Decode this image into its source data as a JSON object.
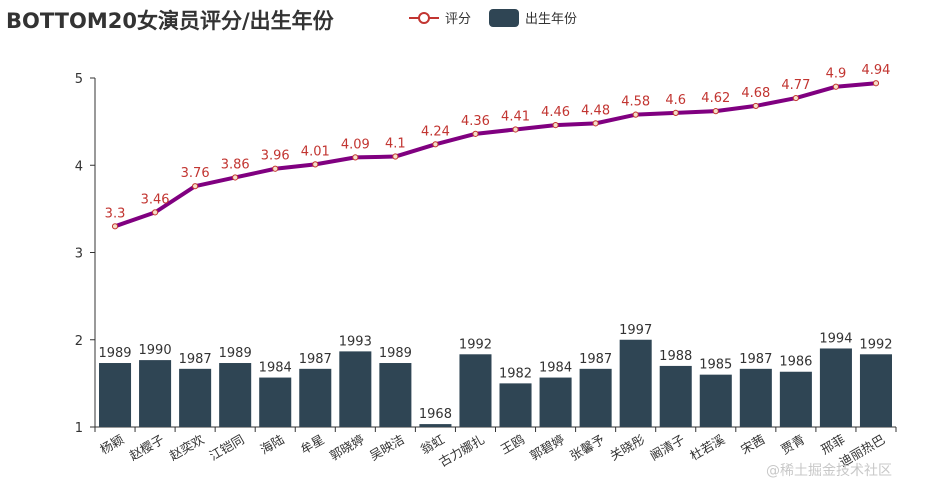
{
  "chart_data": {
    "type": "bar",
    "title": "BOTTOM20女演员评分/出生年份",
    "categories": [
      "杨颖",
      "赵樱子",
      "赵奕欢",
      "江铠同",
      "海陆",
      "牟星",
      "郭晓婷",
      "吴映洁",
      "翁虹",
      "古力娜扎",
      "王鸥",
      "郭碧婷",
      "张馨予",
      "关晓彤",
      "阚清子",
      "杜若溪",
      "宋茜",
      "贾青",
      "邢菲",
      "迪丽热巴"
    ],
    "series": [
      {
        "name": "评分",
        "type": "line",
        "color": "#800080",
        "values": [
          3.3,
          3.46,
          3.76,
          3.86,
          3.96,
          4.01,
          4.09,
          4.1,
          4.24,
          4.36,
          4.41,
          4.46,
          4.48,
          4.58,
          4.6,
          4.62,
          4.68,
          4.77,
          4.9,
          4.94
        ]
      },
      {
        "name": "出生年份",
        "type": "bar",
        "color": "#2f4554",
        "values": [
          1989,
          1990,
          1987,
          1989,
          1984,
          1987,
          1993,
          1989,
          1968,
          1992,
          1982,
          1984,
          1987,
          1997,
          1988,
          1985,
          1987,
          1986,
          1994,
          1992
        ]
      }
    ],
    "ylim": [
      1,
      5
    ],
    "yticks": [
      "1",
      "2",
      "3",
      "4",
      "5"
    ],
    "bar_year_scale": {
      "year_base": 1937,
      "years_per_unit": 30
    },
    "xlabel": "",
    "ylabel": "",
    "legend": "top-center"
  },
  "watermark": "@稀土掘金技术社区",
  "colors": {
    "line_label": "#c23531",
    "marker_fill": "#f4e0c8",
    "legend_line": "#c23531"
  }
}
